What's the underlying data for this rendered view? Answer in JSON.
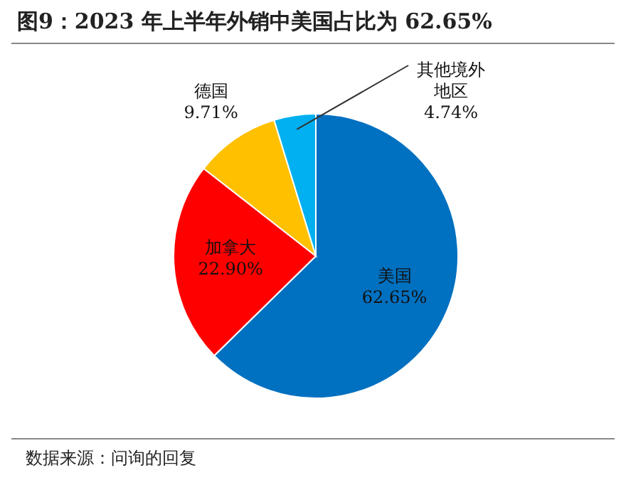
{
  "chart_data": {
    "type": "pie",
    "title": "图9：2023 年上半年外销中美国占比为 62.65%",
    "categories": [
      "美国",
      "加拿大",
      "德国",
      "其他境外地区"
    ],
    "values": [
      62.65,
      22.9,
      9.71,
      4.74
    ],
    "colors": [
      "#0070c0",
      "#ff0000",
      "#ffc000",
      "#00b0f0"
    ],
    "value_labels": [
      "62.65%",
      "22.90%",
      "9.71%",
      "4.74%"
    ],
    "annotations": [
      "数据来源：问询的回复"
    ]
  }
}
